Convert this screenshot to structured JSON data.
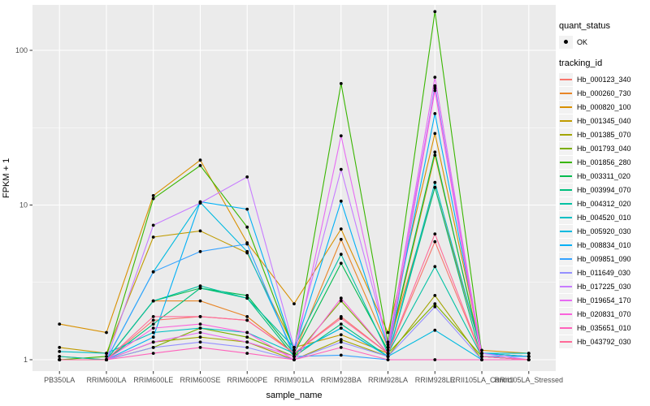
{
  "chart_data": {
    "type": "line",
    "title": "",
    "xlabel": "sample_name",
    "ylabel": "FPKM + 1",
    "y_scale": "log10",
    "ylim": [
      1,
      200
    ],
    "y_ticks": [
      "1",
      "10",
      "100"
    ],
    "y_tick_values": [
      1,
      10,
      100
    ],
    "y_minor_values": [
      3.162,
      31.62
    ],
    "grid": true,
    "legend_position": "right",
    "point_shape": "filled-circle",
    "x_categories": [
      "PB350LA",
      "RRIM600LA",
      "RRIM600LE",
      "RRIM600SE",
      "RRIM600PE",
      "RRIM901LA",
      "RRIM928BA",
      "RRIM928LA",
      "RRIM928LE",
      "RRII105LA_Control",
      "RRII105LA_Stressed"
    ],
    "legend": {
      "quant_status_title": "quant_status",
      "quant_status_items": [
        {
          "label": "OK",
          "marker": "black-point"
        }
      ],
      "tracking_id_title": "tracking_id"
    },
    "colors": {
      "panel_bg": "#EBEBEB",
      "grid_major": "#FFFFFF",
      "grid_minor": "#F7F7F7",
      "key_bg": "#F2F2F2",
      "tick": "#333333",
      "axis_text": "#4D4D4D",
      "point": "#000000"
    },
    "series": [
      {
        "name": "Hb_000123_340",
        "color": "#F8766D",
        "values": [
          1.0,
          1.0,
          1.8,
          1.9,
          1.8,
          1.1,
          1.9,
          1.1,
          5.8,
          1.05,
          1.0
        ]
      },
      {
        "name": "Hb_000260_730",
        "color": "#E88526",
        "values": [
          1.05,
          1.0,
          2.4,
          2.4,
          1.9,
          1.1,
          6.0,
          1.2,
          13.0,
          1.1,
          1.05
        ]
      },
      {
        "name": "Hb_000820_100",
        "color": "#D89000",
        "values": [
          1.7,
          1.5,
          11.5,
          19.5,
          5.7,
          2.3,
          7.0,
          1.5,
          29.0,
          1.15,
          1.1
        ]
      },
      {
        "name": "Hb_001345_040",
        "color": "#C09B00",
        "values": [
          1.2,
          1.1,
          6.2,
          6.8,
          4.9,
          1.2,
          1.45,
          1.1,
          21.0,
          1.1,
          1.05
        ]
      },
      {
        "name": "Hb_001385_070",
        "color": "#A3A500",
        "values": [
          1.0,
          1.0,
          1.3,
          1.4,
          1.3,
          1.0,
          1.35,
          1.05,
          2.6,
          1.0,
          1.0
        ]
      },
      {
        "name": "Hb_001793_040",
        "color": "#7CAE00",
        "values": [
          1.0,
          1.0,
          1.2,
          1.6,
          1.4,
          1.05,
          2.4,
          1.1,
          2.3,
          1.05,
          1.0
        ]
      },
      {
        "name": "Hb_001856_280",
        "color": "#39B600",
        "values": [
          1.0,
          1.05,
          11.0,
          18.0,
          7.2,
          1.15,
          61.0,
          1.3,
          178.0,
          1.1,
          1.05
        ]
      },
      {
        "name": "Hb_003311_020",
        "color": "#00BB4E",
        "values": [
          1.0,
          1.0,
          2.4,
          2.9,
          2.6,
          1.1,
          4.2,
          1.15,
          22.0,
          1.05,
          1.0
        ]
      },
      {
        "name": "Hb_003994_070",
        "color": "#00BF7D",
        "values": [
          1.0,
          1.0,
          1.7,
          2.9,
          2.5,
          1.05,
          1.7,
          1.05,
          13.0,
          1.0,
          1.0
        ]
      },
      {
        "name": "Hb_004312_020",
        "color": "#00C1A3",
        "values": [
          1.05,
          1.0,
          2.4,
          3.0,
          2.5,
          1.2,
          4.8,
          1.1,
          4.0,
          1.05,
          1.0
        ]
      },
      {
        "name": "Hb_004520_010",
        "color": "#00BFC4",
        "values": [
          1.13,
          1.1,
          1.5,
          1.6,
          1.5,
          1.1,
          1.6,
          1.05,
          14.0,
          1.1,
          1.1
        ]
      },
      {
        "name": "Hb_005920_030",
        "color": "#00BAE0",
        "values": [
          1.0,
          1.0,
          3.7,
          10.4,
          5.0,
          1.1,
          1.6,
          1.05,
          1.55,
          1.0,
          1.0
        ]
      },
      {
        "name": "Hb_008834_010",
        "color": "#00B0F6",
        "values": [
          1.0,
          1.0,
          1.4,
          10.5,
          9.4,
          1.15,
          10.6,
          1.2,
          39.0,
          1.1,
          1.05
        ]
      },
      {
        "name": "Hb_009851_090",
        "color": "#35A2FF",
        "values": [
          1.0,
          1.0,
          3.7,
          5.0,
          5.6,
          1.05,
          1.07,
          1.0,
          59.0,
          1.05,
          1.05
        ]
      },
      {
        "name": "Hb_011649_030",
        "color": "#9590FF",
        "values": [
          1.0,
          1.0,
          1.2,
          1.3,
          1.2,
          1.0,
          1.3,
          1.05,
          2.2,
          1.0,
          1.0
        ]
      },
      {
        "name": "Hb_017225_030",
        "color": "#C77CFF",
        "values": [
          1.0,
          1.0,
          7.4,
          10.3,
          15.2,
          1.2,
          17.0,
          1.25,
          57.0,
          1.1,
          1.0
        ]
      },
      {
        "name": "Hb_019654_170",
        "color": "#E76BF3",
        "values": [
          1.0,
          1.0,
          1.3,
          1.5,
          1.3,
          1.05,
          28.0,
          1.2,
          67.0,
          1.05,
          1.0
        ]
      },
      {
        "name": "Hb_020831_070",
        "color": "#FA62DB",
        "values": [
          1.0,
          1.0,
          1.6,
          1.7,
          1.5,
          1.0,
          2.5,
          1.1,
          55.0,
          1.0,
          1.0
        ]
      },
      {
        "name": "Hb_035651_010",
        "color": "#FF62BC",
        "values": [
          1.0,
          1.0,
          1.1,
          1.2,
          1.1,
          1.0,
          1.2,
          1.0,
          1.0,
          1.0,
          1.0
        ]
      },
      {
        "name": "Hb_043792_030",
        "color": "#FF6A98",
        "values": [
          1.0,
          1.0,
          1.9,
          1.9,
          1.8,
          1.1,
          1.85,
          1.1,
          6.5,
          1.05,
          1.0
        ]
      }
    ]
  }
}
